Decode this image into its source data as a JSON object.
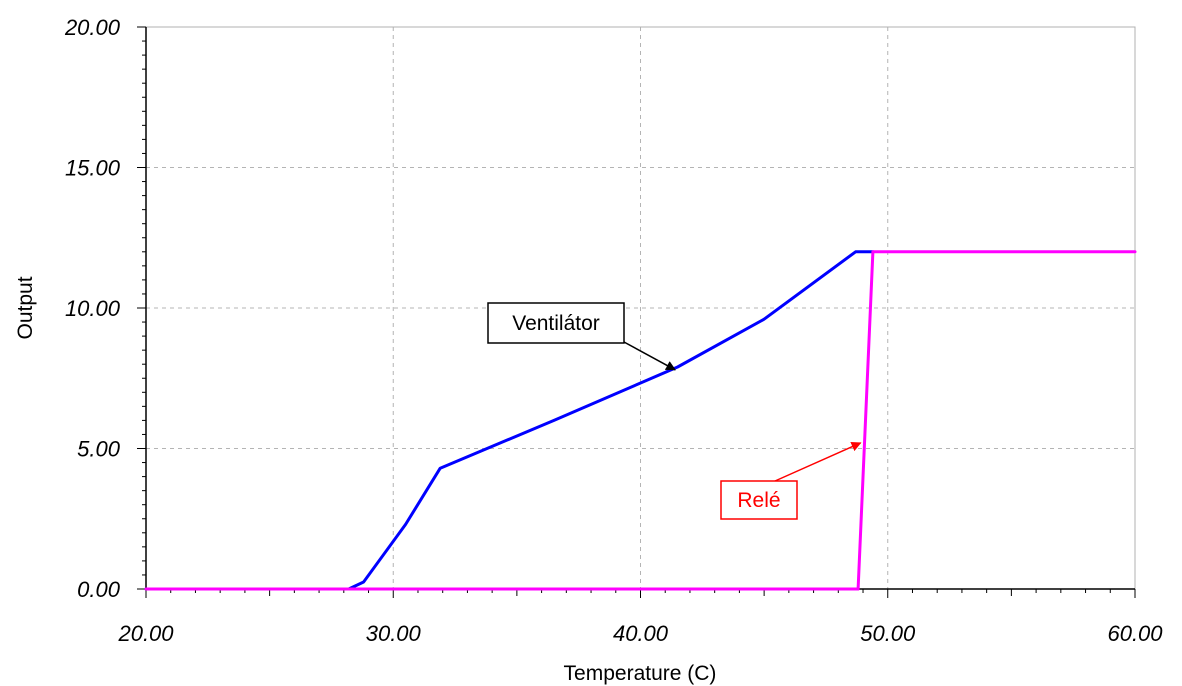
{
  "chart_data": {
    "type": "line",
    "xlabel": "Temperature (C)",
    "ylabel": "Output",
    "xlim": [
      20,
      60
    ],
    "ylim": [
      0,
      20
    ],
    "x_ticks": [
      20,
      30,
      40,
      50,
      60
    ],
    "y_ticks": [
      0,
      5,
      10,
      15,
      20
    ],
    "x_tick_labels": [
      "20.00",
      "30.00",
      "40.00",
      "50.00",
      "60.00"
    ],
    "y_tick_labels": [
      "0.00",
      "5.00",
      "10.00",
      "15.00",
      "20.00"
    ],
    "grid": true,
    "series": [
      {
        "name": "Ventilátor",
        "color": "#0000ff",
        "points": [
          [
            20,
            0
          ],
          [
            28.2,
            0
          ],
          [
            28.8,
            0.25
          ],
          [
            30.5,
            2.3
          ],
          [
            31.9,
            4.3
          ],
          [
            36.5,
            6.0
          ],
          [
            41.5,
            7.9
          ],
          [
            45.0,
            9.6
          ],
          [
            48.7,
            12.0
          ],
          [
            49.4,
            12.0
          ]
        ]
      },
      {
        "name": "Relé",
        "color": "#ff00ff",
        "points": [
          [
            20,
            0
          ],
          [
            48.8,
            0
          ],
          [
            49.4,
            12.0
          ],
          [
            60,
            12.0
          ]
        ]
      }
    ],
    "annotations": [
      {
        "text": "Ventilátor",
        "series": 0,
        "target": [
          41.4,
          7.8
        ],
        "box_color": "#000000",
        "text_color": "#000000",
        "arrow_color": "#000000"
      },
      {
        "text": "Relé",
        "series": 1,
        "target": [
          48.9,
          5.2
        ],
        "box_color": "#ff0000",
        "text_color": "#ff0000",
        "arrow_color": "#ff0000"
      }
    ]
  }
}
